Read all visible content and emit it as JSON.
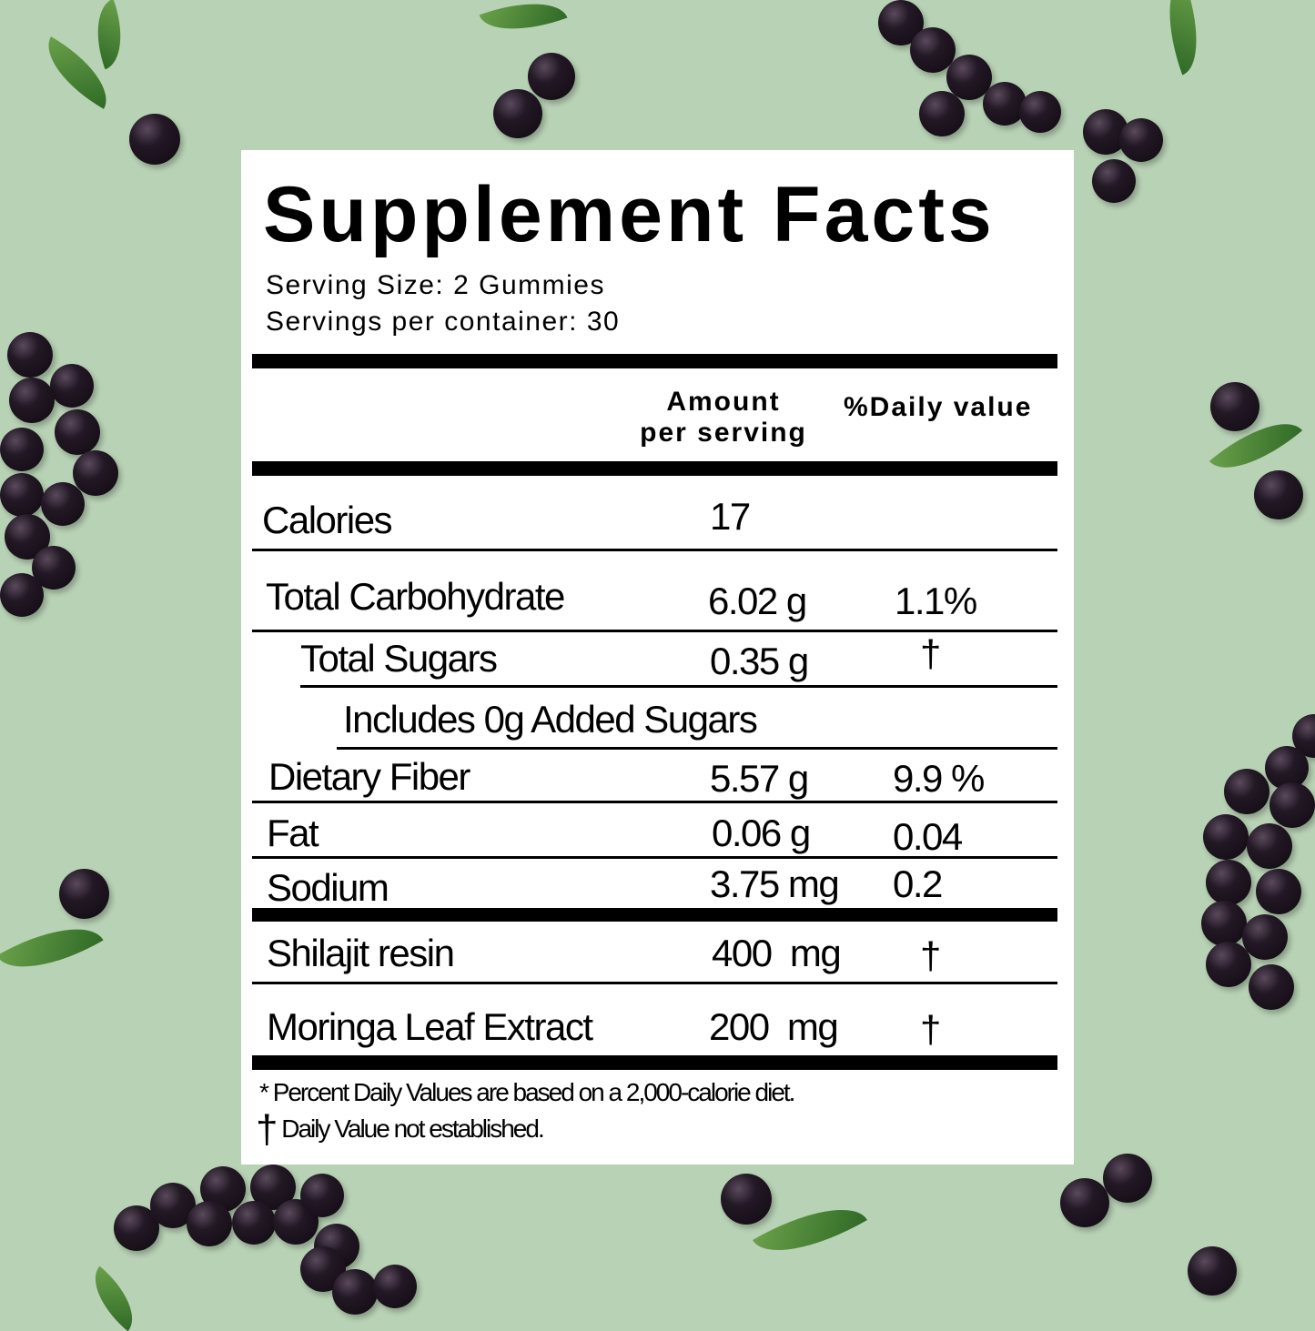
{
  "title": "Supplement Facts",
  "serving_size": "Serving Size: 2 Gummies",
  "servings_per_container": "Servings per container: 30",
  "headers": {
    "amount_line1": "Amount",
    "amount_line2": "per serving",
    "daily_value": "%Daily value"
  },
  "rows": [
    {
      "label": "Calories",
      "amount": "17",
      "dv": ""
    },
    {
      "label": "Total Carbohydrate",
      "amount": "6.02 g",
      "dv": "1.1%"
    },
    {
      "label": "Total Sugars",
      "amount": "0.35 g",
      "dv": "†"
    },
    {
      "label": "Includes 0g Added Sugars",
      "amount": "",
      "dv": ""
    },
    {
      "label": "Dietary Fiber",
      "amount": "5.57 g",
      "dv": "9.9 %"
    },
    {
      "label": "Fat",
      "amount": "0.06 g",
      "dv": "0.04"
    },
    {
      "label": "Sodium",
      "amount": "3.75 mg",
      "dv": "0.2"
    },
    {
      "label": "Shilajit resin",
      "amount": "400  mg",
      "dv": "†"
    },
    {
      "label": "Moringa Leaf Extract",
      "amount": "200  mg",
      "dv": "†"
    }
  ],
  "footnotes": {
    "star_symbol": "*",
    "star_text": "Percent Daily Values are based on a 2,000-calorie diet.",
    "dagger_symbol": "†",
    "dagger_text": "Daily Value not established."
  },
  "colors": {
    "background": "#b8d2b5",
    "berry": "#1a121b",
    "leaf": "#3f7d2e",
    "panel": "#ffffff"
  }
}
